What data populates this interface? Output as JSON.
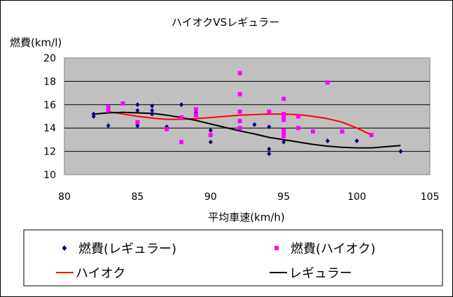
{
  "chart_data": {
    "type": "scatter",
    "title": "ハイオクVSレギュラー",
    "xlabel": "平均車速(km/h)",
    "ylabel": "燃費(km/l)",
    "xlim": [
      80,
      105
    ],
    "ylim": [
      10,
      20
    ],
    "xticks": [
      80,
      85,
      90,
      95,
      100,
      105
    ],
    "yticks": [
      10,
      12,
      14,
      16,
      18,
      20
    ],
    "grid": "horizontal",
    "plot_background": "#c0c0c0",
    "series": [
      {
        "name": "燃費(レギュラー)",
        "kind": "scatter",
        "marker": "diamond",
        "color": "#000080",
        "points": [
          [
            82,
            15.2
          ],
          [
            82,
            15.0
          ],
          [
            83,
            14.2
          ],
          [
            85,
            16.0
          ],
          [
            85,
            15.5
          ],
          [
            85,
            14.2
          ],
          [
            86,
            15.9
          ],
          [
            86,
            15.5
          ],
          [
            86,
            15.2
          ],
          [
            87,
            14.1
          ],
          [
            88,
            16.0
          ],
          [
            88,
            14.9
          ],
          [
            89,
            15.3
          ],
          [
            90,
            13.8
          ],
          [
            90,
            12.8
          ],
          [
            92,
            14.6
          ],
          [
            93,
            14.3
          ],
          [
            94,
            14.1
          ],
          [
            94,
            12.2
          ],
          [
            94,
            11.8
          ],
          [
            95,
            12.8
          ],
          [
            98,
            12.9
          ],
          [
            100,
            12.9
          ],
          [
            103,
            12.0
          ]
        ]
      },
      {
        "name": "燃費(ハイオク)",
        "kind": "scatter",
        "marker": "square",
        "color": "#ff00ff",
        "points": [
          [
            83,
            15.8
          ],
          [
            83,
            15.5
          ],
          [
            84,
            16.1
          ],
          [
            85,
            14.5
          ],
          [
            87,
            13.9
          ],
          [
            88,
            14.9
          ],
          [
            88,
            12.8
          ],
          [
            89,
            15.6
          ],
          [
            89,
            15.1
          ],
          [
            90,
            13.4
          ],
          [
            92,
            18.7
          ],
          [
            92,
            16.9
          ],
          [
            92,
            15.4
          ],
          [
            92,
            14.6
          ],
          [
            92,
            14.0
          ],
          [
            94,
            15.4
          ],
          [
            95,
            16.5
          ],
          [
            95,
            15.2
          ],
          [
            95,
            14.7
          ],
          [
            95,
            14.9
          ],
          [
            95,
            13.8
          ],
          [
            95,
            13.5
          ],
          [
            95,
            13.3
          ],
          [
            96,
            15.0
          ],
          [
            96,
            14.0
          ],
          [
            97,
            13.7
          ],
          [
            98,
            17.9
          ],
          [
            99,
            13.7
          ],
          [
            101,
            13.4
          ]
        ]
      },
      {
        "name": "ハイオク",
        "kind": "line",
        "color": "#ff0000",
        "points": [
          [
            83,
            15.4
          ],
          [
            84,
            15.2
          ],
          [
            85,
            15.0
          ],
          [
            86,
            14.85
          ],
          [
            87,
            14.75
          ],
          [
            88,
            14.75
          ],
          [
            89,
            14.8
          ],
          [
            90,
            14.9
          ],
          [
            91,
            15.0
          ],
          [
            92,
            15.1
          ],
          [
            93,
            15.15
          ],
          [
            94,
            15.2
          ],
          [
            95,
            15.2
          ],
          [
            96,
            15.15
          ],
          [
            97,
            15.0
          ],
          [
            98,
            14.8
          ],
          [
            99,
            14.5
          ],
          [
            100,
            14.0
          ],
          [
            101,
            13.4
          ]
        ]
      },
      {
        "name": "レギュラー",
        "kind": "line",
        "color": "#000000",
        "points": [
          [
            82,
            15.2
          ],
          [
            83,
            15.3
          ],
          [
            84,
            15.35
          ],
          [
            85,
            15.3
          ],
          [
            86,
            15.25
          ],
          [
            87,
            15.1
          ],
          [
            88,
            14.9
          ],
          [
            89,
            14.65
          ],
          [
            90,
            14.35
          ],
          [
            91,
            14.05
          ],
          [
            92,
            13.75
          ],
          [
            93,
            13.5
          ],
          [
            94,
            13.2
          ],
          [
            95,
            13.0
          ],
          [
            96,
            12.8
          ],
          [
            97,
            12.6
          ],
          [
            98,
            12.45
          ],
          [
            99,
            12.35
          ],
          [
            100,
            12.3
          ],
          [
            101,
            12.3
          ],
          [
            102,
            12.4
          ],
          [
            103,
            12.5
          ]
        ]
      }
    ],
    "legend": {
      "placement": "bottom",
      "entries": [
        {
          "label": "燃費(レギュラー)",
          "symbol": "diamond",
          "color": "#000080"
        },
        {
          "label": "燃費(ハイオク)",
          "symbol": "square",
          "color": "#ff00ff"
        },
        {
          "label": "ハイオク",
          "symbol": "line",
          "color": "#ff0000"
        },
        {
          "label": "レギュラー",
          "symbol": "line",
          "color": "#000000"
        }
      ]
    }
  }
}
